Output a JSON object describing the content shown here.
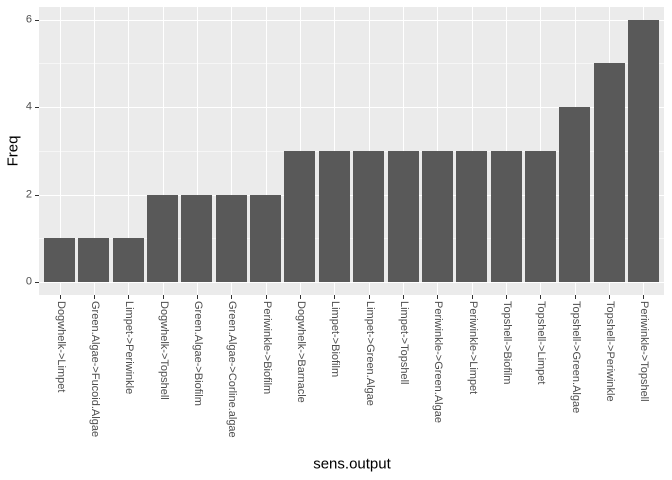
{
  "chart_data": {
    "type": "bar",
    "title": "",
    "xlabel": "sens.output",
    "ylabel": "Freq",
    "categories": [
      "Dogwhelk->Limpet",
      "Green.Algae->Fucoid.Algae",
      "Limpet->Periwinkle",
      "Dogwhelk->Topshell",
      "Green.Algae->Biofilm",
      "Green.Algae->Corline.algae",
      "Periwinkle->Biofilm",
      "Dogwhelk->Barnacle",
      "Limpet->Biofilm",
      "Limpet->Green.Algae",
      "Limpet->Topshell",
      "Periwinkle->Green.Algae",
      "Periwinkle->Limpet",
      "Topshell->Biofilm",
      "Topshell->Limpet",
      "Topshell->Green.Algae",
      "Topshell->Periwinkle",
      "Periwinkle->Topshell"
    ],
    "values": [
      1,
      1,
      1,
      2,
      2,
      2,
      2,
      3,
      3,
      3,
      3,
      3,
      3,
      3,
      3,
      4,
      5,
      6
    ],
    "y_ticks": [
      0,
      2,
      4,
      6
    ],
    "y_minor_ticks": [
      1,
      3,
      5
    ],
    "ylim": [
      -0.3,
      6.3
    ],
    "grid": "horizontal major+minor, vertical major per category",
    "legend_position": "none",
    "colors": {
      "bar_fill": "#595959",
      "panel_background": "#EBEBEB",
      "grid_line": "#FFFFFF",
      "axis_text": "#4D4D4D",
      "axis_title": "#000000",
      "tick_mark": "#333333",
      "page_background": "#FFFFFF"
    }
  }
}
